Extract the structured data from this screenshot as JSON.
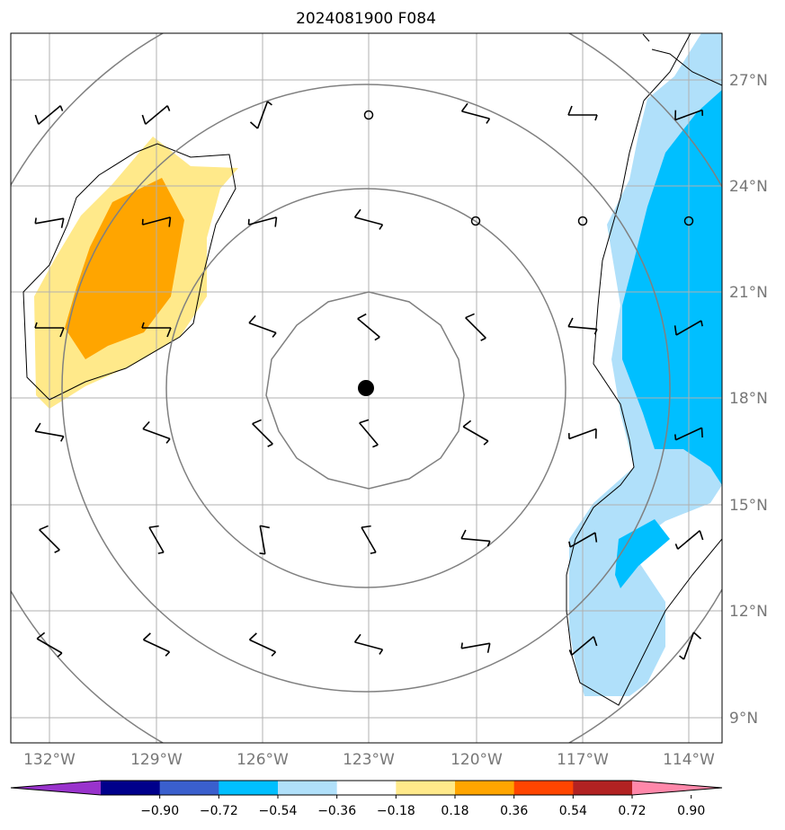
{
  "title": "2024081900 F084",
  "map": {
    "lon_ticks": [
      "132°W",
      "129°W",
      "126°W",
      "123°W",
      "120°W",
      "117°W",
      "114°W"
    ],
    "lat_ticks": [
      "27°N",
      "24°N",
      "21°N",
      "18°N",
      "15°N",
      "12°N",
      "9°N"
    ],
    "center": {
      "lon": -123.0,
      "lat": 18.3
    },
    "range_rings_deg": [
      2.8,
      5.6,
      8.4,
      11.2
    ],
    "colors": {
      "coastline": "#000000",
      "rings": "#808080",
      "grid": "#b0b0b0"
    }
  },
  "colorbar": {
    "levels": [
      "−0.90",
      "−0.72",
      "−0.54",
      "−0.36",
      "−0.18",
      "0.18",
      "0.36",
      "0.54",
      "0.72",
      "0.90"
    ],
    "colors": [
      "#9933cc",
      "#00008b",
      "#3a5fcd",
      "#00bfff",
      "#b0e0fa",
      "#ffffff",
      "#ffe98a",
      "#ffa500",
      "#ff4500",
      "#b22222",
      "#ff88aa"
    ]
  },
  "wind_barbs_note_icons": "wind-barb-icon"
}
